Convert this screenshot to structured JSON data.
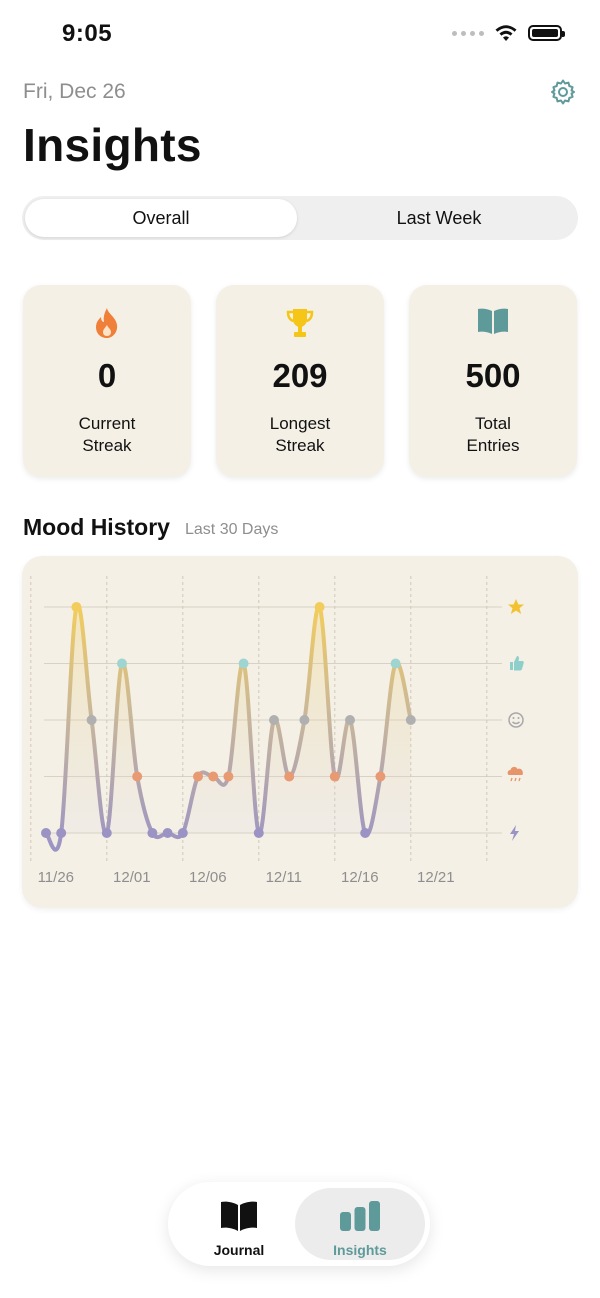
{
  "status_bar": {
    "time": "9:05"
  },
  "header": {
    "date": "Fri, Dec 26",
    "title": "Insights"
  },
  "segmented_control": {
    "options": [
      "Overall",
      "Last Week"
    ],
    "selected": "Overall"
  },
  "stats": [
    {
      "icon": "flame-icon",
      "value": "0",
      "label_line1": "Current",
      "label_line2": "Streak"
    },
    {
      "icon": "trophy-icon",
      "value": "209",
      "label_line1": "Longest",
      "label_line2": "Streak"
    },
    {
      "icon": "book-icon",
      "value": "500",
      "label_line1": "Total",
      "label_line2": "Entries"
    }
  ],
  "mood_history": {
    "title": "Mood History",
    "subtitle": "Last 30 Days",
    "mood_icons": [
      "star-icon",
      "thumbs-up-icon",
      "smile-icon",
      "rain-cloud-icon",
      "lightning-icon"
    ]
  },
  "chart_data": {
    "type": "line",
    "x_tick_labels": [
      "11/26",
      "12/01",
      "12/06",
      "12/11",
      "12/16",
      "12/21"
    ],
    "y_levels": [
      "lightning",
      "rain",
      "neutral",
      "good",
      "great"
    ],
    "ylim": [
      1,
      5
    ],
    "x_dates": [
      "11/25",
      "11/26",
      "11/27",
      "11/28",
      "11/29",
      "11/30",
      "12/01",
      "12/02",
      "12/03",
      "12/04",
      "12/05",
      "12/06",
      "12/07",
      "12/08",
      "12/09",
      "12/10",
      "12/11",
      "12/12",
      "12/13",
      "12/14",
      "12/15",
      "12/16",
      "12/17",
      "12/18"
    ],
    "values": [
      1,
      1,
      5,
      3,
      1,
      4,
      2,
      1,
      1,
      1,
      2,
      2,
      2,
      4,
      1,
      3,
      2,
      3,
      5,
      2,
      3,
      1,
      2,
      4,
      3
    ],
    "x_index": [
      -1,
      0,
      1,
      2,
      3,
      4,
      5,
      6,
      7,
      8,
      9,
      10,
      11,
      12,
      13,
      14,
      15,
      16,
      17,
      18,
      19,
      20,
      21,
      22,
      23
    ],
    "level_colors": {
      "1": "#9b93c4",
      "2": "#e89a72",
      "3": "#b0b0b0",
      "4": "#9fd5d0",
      "5": "#f2cd5c"
    }
  },
  "tab_bar": {
    "tabs": [
      {
        "label": "Journal",
        "icon": "book-icon"
      },
      {
        "label": "Insights",
        "icon": "bar-chart-icon"
      }
    ],
    "selected": "Insights"
  },
  "colors": {
    "accent": "#5f9a9b",
    "card_bg": "#f4f0e6",
    "flame": "#f07f3a",
    "trophy": "#f5c518"
  }
}
